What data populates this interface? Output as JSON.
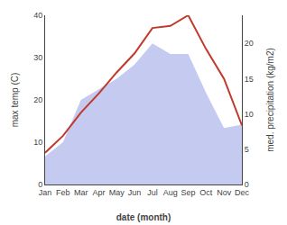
{
  "chart_data": {
    "type": "line",
    "xlabel": "date (month)",
    "ylabel": "max temp (C)",
    "y2label": "med. precipitation (kg/m2)",
    "categories": [
      "Jan",
      "Feb",
      "Mar",
      "Apr",
      "May",
      "Jun",
      "Jul",
      "Aug",
      "Sep",
      "Oct",
      "Nov",
      "Dec"
    ],
    "series": [
      {
        "type": "area",
        "axis": "y2",
        "color": "#c5caf0",
        "values": [
          4.0,
          6.0,
          12.0,
          13.5,
          15.0,
          17.0,
          20.0,
          18.5,
          18.5,
          13.0,
          8.0,
          8.5
        ]
      },
      {
        "type": "line",
        "color": "#c0392b",
        "values": [
          7.5,
          11.5,
          17.0,
          21.5,
          26.5,
          31.0,
          37.0,
          37.5,
          40.0,
          32.0,
          25.0,
          14.0
        ]
      }
    ],
    "ylim": [
      0,
      40
    ],
    "yticks": [
      0,
      10,
      20,
      30,
      40
    ],
    "y2lim": [
      0,
      24
    ],
    "y2ticks": [
      0,
      5,
      10,
      15,
      20
    ],
    "grid": false
  }
}
